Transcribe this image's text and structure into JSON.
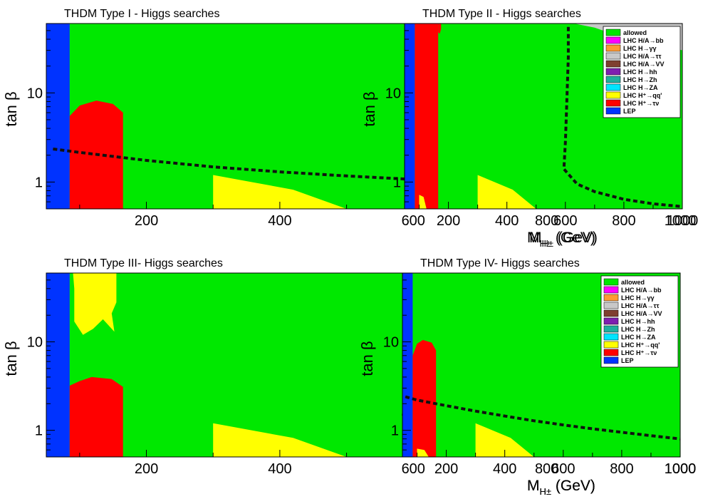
{
  "colors": {
    "allowed": "#00e800",
    "bb": "#ff00ff",
    "gg": "#ff9933",
    "tautau": "#c8c8c8",
    "vv": "#7f3f2f",
    "hh": "#7f1fb0",
    "zh": "#1fb09f",
    "za": "#00e5ff",
    "qq": "#ffff00",
    "taunu": "#ff0000",
    "lep": "#0033ff"
  },
  "chart_data": [
    {
      "type": "area",
      "title": "THDM Type  I - Higgs searches",
      "xlabel": "M",
      "xlabel_sub": "H±",
      "xlabel_unit": " (GeV)",
      "ylabel": "tan β",
      "xlim": [
        50,
        1000
      ],
      "ylim": [
        0.5,
        60
      ],
      "y_log": true,
      "xticks": [
        200,
        400,
        600,
        800,
        1000
      ],
      "yticks": [
        1,
        10
      ],
      "legend": [
        "allowed",
        "LHC H/A→bb",
        "LHC H→γγ",
        "LHC H/A→ττ",
        "LHC H/A→VV",
        "LHC H→hh",
        "LHC H→Zh",
        "LHC H→ZA",
        "LHC H⁺→qq'",
        "LHC H⁺→τν",
        "LEP"
      ],
      "legend_placement": "top-right",
      "regions": [
        {
          "name": "LEP",
          "color_key": "lep",
          "points": [
            [
              50,
              0.5
            ],
            [
              85,
              0.5
            ],
            [
              85,
              60
            ],
            [
              50,
              60
            ]
          ]
        },
        {
          "name": "LHC H⁺→τν",
          "color_key": "taunu",
          "points": [
            [
              85,
              0.5
            ],
            [
              165,
              0.5
            ],
            [
              165,
              6
            ],
            [
              150,
              7.5
            ],
            [
              125,
              8.2
            ],
            [
              100,
              7.2
            ],
            [
              85,
              5.5
            ]
          ]
        },
        {
          "name": "LHC H⁺→qq'",
          "color_key": "qq",
          "points": [
            [
              300,
              0.5
            ],
            [
              300,
              1.2
            ],
            [
              420,
              0.82
            ],
            [
              500,
              0.5
            ]
          ]
        }
      ],
      "boundary": {
        "style": "dashed",
        "points": [
          [
            60,
            2.35
          ],
          [
            100,
            2.15
          ],
          [
            200,
            1.75
          ],
          [
            300,
            1.48
          ],
          [
            400,
            1.3
          ],
          [
            500,
            1.17
          ],
          [
            600,
            1.07
          ],
          [
            700,
            0.98
          ],
          [
            800,
            0.91
          ],
          [
            900,
            0.85
          ],
          [
            1000,
            0.8
          ]
        ]
      }
    },
    {
      "type": "area",
      "title": "THDM Type II - Higgs searches",
      "xlabel": "M",
      "xlabel_sub": "H±",
      "xlabel_unit": " (GeV)",
      "ylabel": "tan β",
      "xlim": [
        50,
        1000
      ],
      "ylim": [
        0.5,
        60
      ],
      "y_log": true,
      "xticks": [
        200,
        400,
        600,
        800,
        1000
      ],
      "yticks": [
        1,
        10
      ],
      "legend": [
        "allowed",
        "LHC H/A→bb",
        "LHC H→γγ",
        "LHC H/A→ττ",
        "LHC H/A→VV",
        "LHC H→hh",
        "LHC H→Zh",
        "LHC H→ZA",
        "LHC H⁺→qq'",
        "LHC H⁺→τν",
        "LEP"
      ],
      "legend_placement": "top-right",
      "regions": [
        {
          "name": "LHC H/A→ττ",
          "color_key": "tautau",
          "points": [
            [
              630,
              60
            ],
            [
              1000,
              60
            ],
            [
              1000,
              30
            ],
            [
              880,
              37
            ],
            [
              760,
              46
            ],
            [
              700,
              54
            ]
          ]
        },
        {
          "name": "LEP",
          "color_key": "lep",
          "points": [
            [
              50,
              0.5
            ],
            [
              85,
              0.5
            ],
            [
              85,
              60
            ],
            [
              50,
              60
            ]
          ]
        },
        {
          "name": "LHC H⁺→τν",
          "color_key": "taunu",
          "points": [
            [
              85,
              0.5
            ],
            [
              165,
              0.5
            ],
            [
              165,
              60
            ],
            [
              85,
              60
            ]
          ]
        },
        {
          "name": "LHC H⁺→τν",
          "color_key": "taunu",
          "points": [
            [
              165,
              60
            ],
            [
              175,
              60
            ],
            [
              175,
              52
            ],
            [
              170,
              46
            ],
            [
              165,
              48
            ]
          ]
        },
        {
          "name": "LHC H⁺→qq'",
          "color_key": "qq",
          "points": [
            [
              100,
              0.5
            ],
            [
              100,
              0.72
            ],
            [
              115,
              0.68
            ],
            [
              125,
              0.5
            ]
          ]
        },
        {
          "name": "LHC H⁺→qq'",
          "color_key": "qq",
          "points": [
            [
              300,
              0.5
            ],
            [
              300,
              1.2
            ],
            [
              420,
              0.82
            ],
            [
              500,
              0.5
            ]
          ]
        }
      ],
      "boundary": {
        "style": "dashed",
        "points": [
          [
            610,
            55
          ],
          [
            610,
            25
          ],
          [
            605,
            8
          ],
          [
            600,
            2.8
          ],
          [
            595,
            1.4
          ],
          [
            640,
            0.95
          ],
          [
            700,
            0.78
          ],
          [
            800,
            0.64
          ],
          [
            900,
            0.57
          ],
          [
            1000,
            0.53
          ]
        ]
      }
    },
    {
      "type": "area",
      "title": "THDM Type III- Higgs searches",
      "xlabel": "M",
      "xlabel_sub": "H±",
      "xlabel_unit": " (GeV)",
      "ylabel": "tan β",
      "xlim": [
        50,
        1000
      ],
      "ylim": [
        0.5,
        60
      ],
      "y_log": true,
      "xticks": [
        200,
        400,
        600,
        800,
        1000
      ],
      "yticks": [
        1,
        10
      ],
      "legend": [
        "allowed",
        "LHC H/A→bb",
        "LHC H→γγ",
        "LHC H/A→ττ",
        "LHC H/A→VV",
        "LHC H→hh",
        "LHC H→Zh",
        "LHC H→ZA",
        "LHC H⁺→qq'",
        "LHC H⁺→τν",
        "LEP"
      ],
      "legend_placement": "top-right",
      "regions": [
        {
          "name": "LEP",
          "color_key": "lep",
          "points": [
            [
              50,
              0.5
            ],
            [
              85,
              0.5
            ],
            [
              85,
              60
            ],
            [
              50,
              60
            ]
          ]
        },
        {
          "name": "LHC H⁺→qq'",
          "color_key": "qq",
          "points": [
            [
              90,
              60
            ],
            [
              155,
              60
            ],
            [
              155,
              28
            ],
            [
              148,
              21
            ],
            [
              152,
              13
            ],
            [
              135,
              18
            ],
            [
              120,
              14
            ],
            [
              105,
              12
            ],
            [
              92,
              17
            ],
            [
              92,
              40
            ]
          ]
        },
        {
          "name": "LHC H⁺→τν",
          "color_key": "taunu",
          "points": [
            [
              85,
              0.5
            ],
            [
              165,
              0.5
            ],
            [
              165,
              3.1
            ],
            [
              148,
              3.8
            ],
            [
              118,
              4
            ],
            [
              100,
              3.6
            ],
            [
              85,
              3.2
            ]
          ]
        },
        {
          "name": "LHC H⁺→qq'",
          "color_key": "qq",
          "points": [
            [
              300,
              0.5
            ],
            [
              300,
              1.2
            ],
            [
              420,
              0.82
            ],
            [
              500,
              0.5
            ]
          ]
        }
      ],
      "boundary": {
        "style": "dashed",
        "points": [
          [
            610,
            55
          ],
          [
            608,
            25
          ],
          [
            600,
            8
          ],
          [
            590,
            3
          ],
          [
            585,
            1.5
          ],
          [
            620,
            1
          ],
          [
            700,
            0.78
          ],
          [
            800,
            0.65
          ],
          [
            900,
            0.57
          ],
          [
            1000,
            0.52
          ]
        ]
      }
    },
    {
      "type": "area",
      "title": "THDM Type IV- Higgs searches",
      "xlabel": "M",
      "xlabel_sub": "H±",
      "xlabel_unit": " (GeV)",
      "ylabel": "tan β",
      "xlim": [
        50,
        1000
      ],
      "ylim": [
        0.5,
        60
      ],
      "y_log": true,
      "xticks": [
        200,
        400,
        600,
        800,
        1000
      ],
      "yticks": [
        1,
        10
      ],
      "legend": [
        "allowed",
        "LHC H/A→bb",
        "LHC H→γγ",
        "LHC H/A→ττ",
        "LHC H/A→VV",
        "LHC H→hh",
        "LHC H→Zh",
        "LHC H→ZA",
        "LHC H⁺→qq'",
        "LHC H⁺→τν",
        "LEP"
      ],
      "legend_placement": "top-right",
      "regions": [
        {
          "name": "LEP",
          "color_key": "lep",
          "points": [
            [
              50,
              0.5
            ],
            [
              85,
              0.5
            ],
            [
              85,
              60
            ],
            [
              50,
              60
            ]
          ]
        },
        {
          "name": "LHC H⁺→τν",
          "color_key": "taunu",
          "points": [
            [
              85,
              0.5
            ],
            [
              165,
              0.5
            ],
            [
              165,
              8
            ],
            [
              150,
              9.8
            ],
            [
              120,
              10.5
            ],
            [
              100,
              9.5
            ],
            [
              85,
              7
            ]
          ]
        },
        {
          "name": "LHC H⁺→qq'",
          "color_key": "qq",
          "points": [
            [
              100,
              0.5
            ],
            [
              100,
              0.62
            ],
            [
              125,
              0.6
            ],
            [
              140,
              0.5
            ]
          ]
        },
        {
          "name": "LHC H⁺→qq'",
          "color_key": "qq",
          "points": [
            [
              300,
              0.5
            ],
            [
              300,
              1.2
            ],
            [
              420,
              0.82
            ],
            [
              500,
              0.5
            ]
          ]
        }
      ],
      "boundary": {
        "style": "dashed",
        "points": [
          [
            60,
            2.4
          ],
          [
            100,
            2.2
          ],
          [
            200,
            1.9
          ],
          [
            300,
            1.65
          ],
          [
            400,
            1.45
          ],
          [
            500,
            1.28
          ],
          [
            600,
            1.15
          ],
          [
            700,
            1.04
          ],
          [
            800,
            0.95
          ],
          [
            900,
            0.87
          ],
          [
            1000,
            0.8
          ]
        ]
      }
    }
  ]
}
